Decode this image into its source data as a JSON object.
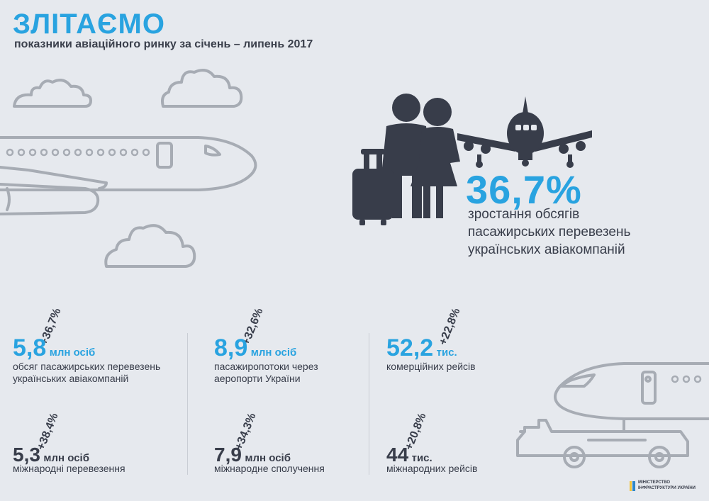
{
  "header": {
    "title": "ЗЛІТАЄМО",
    "subtitle": "показники авіаційного ринку за січень – липень 2017"
  },
  "hero": {
    "percent": "36,7%",
    "lines": [
      "зростання обсягів",
      "пасажирських перевезень",
      "українських авіакомпаній"
    ]
  },
  "stats": [
    {
      "growth": "+36,7%",
      "value": "5,8",
      "unit": "млн осіб",
      "desc": [
        "обсяг пасажирських перевезень",
        "українських авіакомпаній"
      ]
    },
    {
      "growth": "+32,6%",
      "value": "8,9",
      "unit": "млн осіб",
      "desc": [
        "пасажиропотоки через",
        "аеропорти України"
      ]
    },
    {
      "growth": "+22,8%",
      "value": "52,2",
      "unit": "тис.",
      "desc": [
        "комерційних рейсів"
      ]
    },
    {
      "growth": "+38,4%",
      "value": "5,3",
      "unit": "млн осіб",
      "desc": [
        "міжнародні перевезення"
      ]
    },
    {
      "growth": "+34,3%",
      "value": "7,9",
      "unit": "млн осіб",
      "desc": [
        "міжнародне сполучення"
      ]
    },
    {
      "growth": "+20,8%",
      "value": "44",
      "unit": "тис.",
      "desc": [
        "міжнародних рейсів"
      ]
    }
  ],
  "footer": {
    "ministry_line1": "МІНІСТЕРСТВО",
    "ministry_line2": "ІНФРАСТРУКТУРИ УКРАЇНИ"
  },
  "colors": {
    "accent": "#29a3e0",
    "dark": "#383d4a",
    "outline": "#a7acb4",
    "background": "#e6e9ee"
  },
  "icons": [
    "cloud-icon",
    "airplane-outline-icon",
    "travelers-icon",
    "suitcase-icon",
    "airplane-front-icon",
    "airport-tug-icon",
    "ministry-logo-icon"
  ]
}
